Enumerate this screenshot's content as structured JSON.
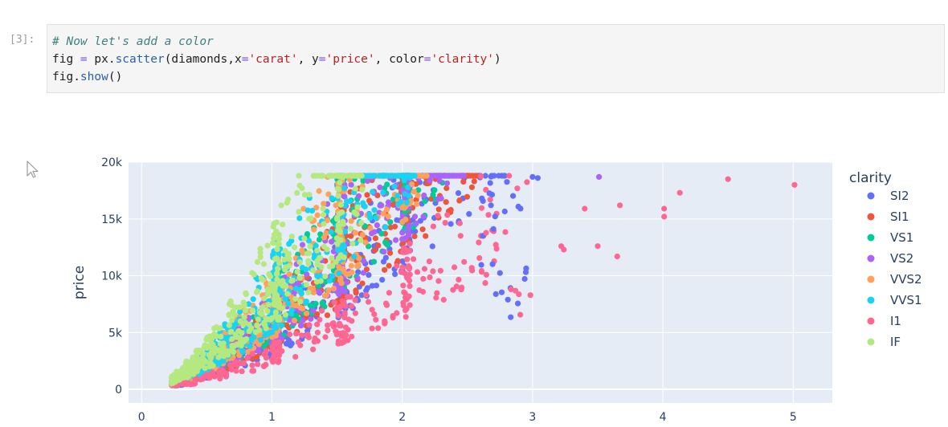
{
  "notebook": {
    "prompt": "[3]:",
    "code": {
      "line1": "# Now let's add a color",
      "line2": {
        "p1": "fig ",
        "p2": "=",
        "p3": " px.",
        "p4": "scatter",
        "p5": "(diamonds,x",
        "p6": "=",
        "p7": "'carat'",
        "p8": ", y",
        "p9": "=",
        "p10": "'price'",
        "p11": ", color",
        "p12": "=",
        "p13": "'clarity'",
        "p14": ")"
      },
      "line3": {
        "p1": "fig.",
        "p2": "show",
        "p3": "()"
      }
    }
  },
  "chart_data": {
    "type": "scatter",
    "xlabel": "",
    "ylabel": "price",
    "xlim": [
      -0.1,
      5.3
    ],
    "ylim": [
      -1200,
      20000
    ],
    "xticks": [
      0,
      1,
      2,
      3,
      4,
      5
    ],
    "xtick_labels": [
      "0",
      "1",
      "2",
      "3",
      "4",
      "5"
    ],
    "yticks": [
      0,
      5000,
      10000,
      15000,
      20000
    ],
    "ytick_labels": [
      "0",
      "5k",
      "10k",
      "15k",
      "20k"
    ],
    "grid": true,
    "legend_title": "clarity",
    "legend_position": "right",
    "series": [
      {
        "name": "SI2",
        "color": "#636efa"
      },
      {
        "name": "SI1",
        "color": "#ef553b"
      },
      {
        "name": "VS1",
        "color": "#00cc96"
      },
      {
        "name": "VS2",
        "color": "#ab63fa"
      },
      {
        "name": "VVS2",
        "color": "#ffa15a"
      },
      {
        "name": "VVS1",
        "color": "#19d3f3"
      },
      {
        "name": "I1",
        "color": "#ff6692"
      },
      {
        "name": "IF",
        "color": "#b6e880"
      }
    ],
    "notable_points": [
      {
        "series": "I1",
        "x": 5.01,
        "y": 18000
      },
      {
        "series": "I1",
        "x": 4.5,
        "y": 18500
      },
      {
        "series": "I1",
        "x": 4.13,
        "y": 17300
      },
      {
        "series": "I1",
        "x": 4.01,
        "y": 15900
      },
      {
        "series": "I1",
        "x": 4.01,
        "y": 15200
      },
      {
        "series": "I1",
        "x": 3.67,
        "y": 16200
      },
      {
        "series": "I1",
        "x": 3.65,
        "y": 11700
      },
      {
        "series": "I1",
        "x": 3.5,
        "y": 12600
      },
      {
        "series": "I1",
        "x": 3.4,
        "y": 15900
      },
      {
        "series": "I1",
        "x": 3.24,
        "y": 12300
      },
      {
        "series": "I1",
        "x": 3.22,
        "y": 12600
      },
      {
        "series": "VS2",
        "x": 3.51,
        "y": 18700
      },
      {
        "series": "SI2",
        "x": 3.04,
        "y": 18600
      },
      {
        "series": "SI2",
        "x": 3.0,
        "y": 18700
      }
    ]
  }
}
